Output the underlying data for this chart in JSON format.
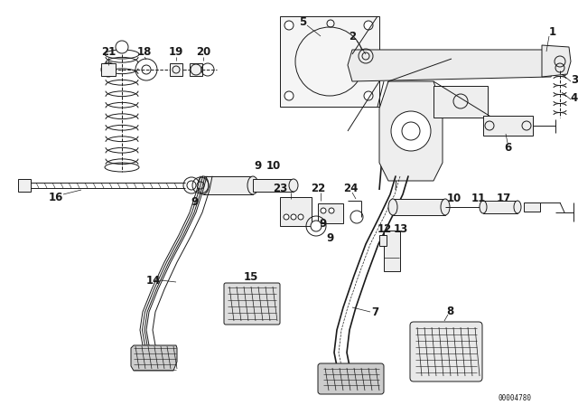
{
  "bg_color": "#ffffff",
  "code": "00004780",
  "fig_w": 6.4,
  "fig_h": 4.48,
  "dpi": 100,
  "xlim": [
    0,
    640
  ],
  "ylim": [
    0,
    448
  ]
}
